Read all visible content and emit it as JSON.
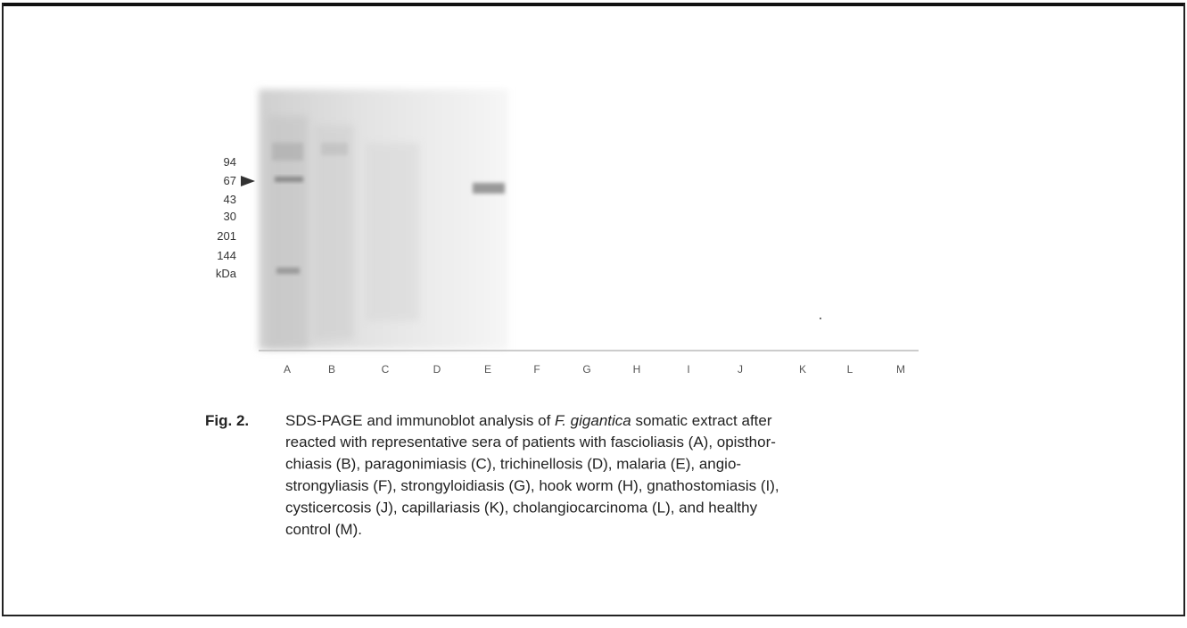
{
  "figure": {
    "markers": [
      "94",
      "67",
      "43",
      "30",
      "201",
      "144",
      "kDa"
    ],
    "lanes": [
      "A",
      "B",
      "C",
      "D",
      "E",
      "F",
      "G",
      "H",
      "I",
      "J",
      "K",
      "L",
      "M"
    ],
    "caption": {
      "label": "Fig. 2.",
      "first_line": {
        "before": "SDS-PAGE and immunoblot analysis of ",
        "italic": "F. gigantica",
        "after": " somatic extract after"
      },
      "lines": [
        "reacted with representative sera of patients with fascioliasis (A), opisthor-",
        "chiasis (B),  paragonimiasis (C), trichinellosis (D), malaria (E), angio-",
        "strongyliasis (F), strongyloidiasis (G), hook worm (H), gnathostomiasis (I),",
        "cysticercosis (J), capillariasis (K), cholangiocarcinoma (L), and healthy",
        "control (M)."
      ]
    }
  }
}
